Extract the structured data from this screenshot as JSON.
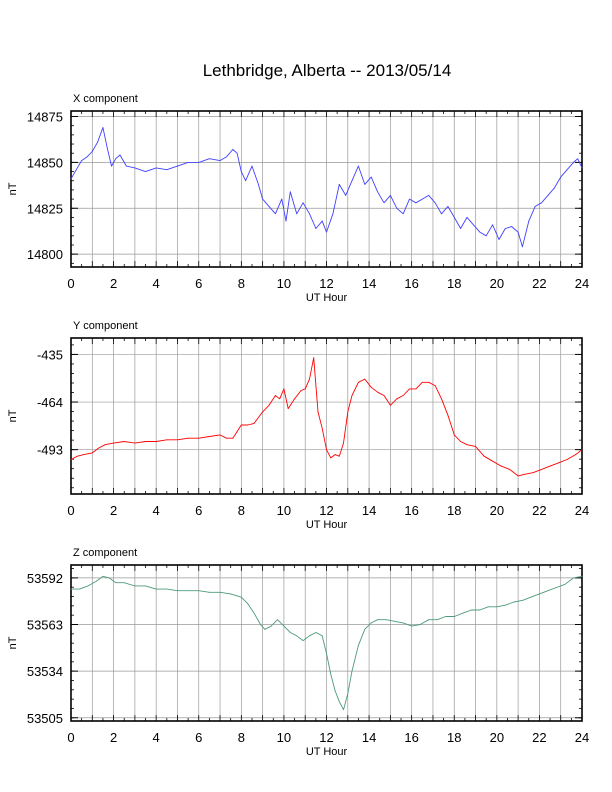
{
  "figure": {
    "title": "Lethbridge, Alberta -- 2013/05/14"
  },
  "chart_data": [
    {
      "type": "line",
      "title": "X component",
      "xlabel": "UT Hour",
      "ylabel": "nT",
      "xlim": [
        0,
        24
      ],
      "ylim": [
        14793,
        14878
      ],
      "xticks": [
        "0",
        "2",
        "4",
        "6",
        "8",
        "10",
        "12",
        "14",
        "16",
        "18",
        "20",
        "22",
        "24"
      ],
      "yticks": [
        "14800",
        "14825",
        "14850",
        "14875"
      ],
      "color": "#4040ff",
      "grid": true,
      "series": [
        {
          "x": [
            0,
            0.25,
            0.5,
            0.75,
            1.0,
            1.25,
            1.5,
            1.7,
            1.9,
            2.1,
            2.3,
            2.6,
            3.0,
            3.5,
            4.0,
            4.5,
            5.0,
            5.5,
            6.0,
            6.5,
            7.0,
            7.3,
            7.6,
            7.8,
            8.0,
            8.2,
            8.5,
            8.8,
            9.0,
            9.3,
            9.6,
            9.9,
            10.1,
            10.3,
            10.6,
            10.9,
            11.2,
            11.5,
            11.8,
            12.0,
            12.3,
            12.6,
            12.9,
            13.2,
            13.5,
            13.8,
            14.1,
            14.4,
            14.7,
            15.0,
            15.3,
            15.6,
            15.9,
            16.2,
            16.5,
            16.8,
            17.1,
            17.4,
            17.7,
            18.0,
            18.3,
            18.6,
            18.9,
            19.2,
            19.5,
            19.8,
            20.1,
            20.4,
            20.7,
            21.0,
            21.2,
            21.5,
            21.8,
            22.1,
            22.4,
            22.7,
            23.0,
            23.3,
            23.6,
            23.8,
            24.0
          ],
          "y": [
            14841,
            14846,
            14851,
            14853,
            14856,
            14861,
            14869,
            14858,
            14848,
            14852,
            14854,
            14848,
            14847,
            14845,
            14847,
            14846,
            14848,
            14850,
            14850,
            14852,
            14851,
            14853,
            14857,
            14855,
            14845,
            14840,
            14848,
            14838,
            14830,
            14826,
            14822,
            14830,
            14818,
            14834,
            14822,
            14828,
            14822,
            14814,
            14818,
            14812,
            14822,
            14838,
            14832,
            14840,
            14848,
            14838,
            14842,
            14834,
            14828,
            14832,
            14825,
            14822,
            14830,
            14828,
            14830,
            14832,
            14828,
            14822,
            14826,
            14820,
            14814,
            14820,
            14816,
            14812,
            14810,
            14816,
            14808,
            14814,
            14815,
            14812,
            14804,
            14818,
            14826,
            14828,
            14832,
            14836,
            14842,
            14846,
            14850,
            14852,
            14847
          ]
        }
      ]
    },
    {
      "type": "line",
      "title": "Y component",
      "xlabel": "UT Hour",
      "ylabel": "nT",
      "xlim": [
        0,
        24
      ],
      "ylim": [
        -520,
        -425
      ],
      "xticks": [
        "0",
        "2",
        "4",
        "6",
        "8",
        "10",
        "12",
        "14",
        "16",
        "18",
        "20",
        "22",
        "24"
      ],
      "yticks": [
        "-435",
        "-464",
        "-493"
      ],
      "color": "#ff0000",
      "grid": true,
      "series": [
        {
          "x": [
            0,
            0.3,
            0.6,
            1.0,
            1.3,
            1.6,
            2.0,
            2.5,
            3.0,
            3.5,
            4.0,
            4.5,
            5.0,
            5.5,
            6.0,
            6.5,
            7.0,
            7.3,
            7.6,
            7.8,
            8.0,
            8.3,
            8.6,
            9.0,
            9.3,
            9.6,
            9.8,
            10.0,
            10.2,
            10.5,
            10.8,
            11.0,
            11.2,
            11.4,
            11.6,
            11.8,
            12.0,
            12.2,
            12.4,
            12.6,
            12.8,
            13.0,
            13.2,
            13.5,
            13.8,
            14.1,
            14.4,
            14.7,
            15.0,
            15.3,
            15.6,
            15.9,
            16.2,
            16.5,
            16.8,
            17.1,
            17.4,
            17.7,
            18.0,
            18.3,
            18.6,
            19.0,
            19.4,
            19.8,
            20.2,
            20.6,
            21.0,
            21.3,
            21.7,
            22.1,
            22.5,
            22.9,
            23.3,
            23.7,
            24.0
          ],
          "y": [
            -499,
            -497,
            -496,
            -495,
            -492,
            -490,
            -489,
            -488,
            -489,
            -488,
            -488,
            -487,
            -487,
            -486,
            -486,
            -485,
            -484,
            -486,
            -486,
            -482,
            -478,
            -478,
            -477,
            -470,
            -466,
            -460,
            -462,
            -456,
            -468,
            -462,
            -457,
            -456,
            -450,
            -437,
            -470,
            -480,
            -493,
            -498,
            -496,
            -497,
            -489,
            -470,
            -460,
            -452,
            -450,
            -455,
            -458,
            -460,
            -466,
            -462,
            -460,
            -456,
            -456,
            -452,
            -452,
            -454,
            -462,
            -472,
            -484,
            -488,
            -490,
            -491,
            -497,
            -500,
            -503,
            -505,
            -509,
            -508,
            -507,
            -505,
            -503,
            -501,
            -499,
            -496,
            -493
          ]
        }
      ]
    },
    {
      "type": "line",
      "title": "Z component",
      "xlabel": "UT Hour",
      "ylabel": "nT",
      "xlim": [
        0,
        24
      ],
      "ylim": [
        53503,
        53600
      ],
      "xticks": [
        "0",
        "2",
        "4",
        "6",
        "8",
        "10",
        "12",
        "14",
        "16",
        "18",
        "20",
        "22",
        "24"
      ],
      "yticks": [
        "53592",
        "53563",
        "53534",
        "53505"
      ],
      "color": "#4d9a78",
      "grid": true,
      "series": [
        {
          "x": [
            0,
            0.4,
            0.8,
            1.2,
            1.5,
            1.8,
            2.1,
            2.5,
            3.0,
            3.5,
            4.0,
            4.5,
            5.0,
            5.5,
            6.0,
            6.5,
            7.0,
            7.5,
            8.0,
            8.3,
            8.6,
            8.9,
            9.1,
            9.4,
            9.7,
            10.0,
            10.3,
            10.6,
            10.9,
            11.2,
            11.5,
            11.8,
            12.0,
            12.2,
            12.4,
            12.6,
            12.8,
            13.0,
            13.2,
            13.5,
            13.8,
            14.1,
            14.4,
            14.8,
            15.2,
            15.6,
            16.0,
            16.4,
            16.8,
            17.2,
            17.6,
            18.0,
            18.4,
            18.8,
            19.2,
            19.6,
            20.0,
            20.4,
            20.8,
            21.2,
            21.6,
            22.0,
            22.4,
            22.8,
            23.2,
            23.6,
            24.0
          ],
          "y": [
            53585,
            53585,
            53587,
            53590,
            53593,
            53592,
            53589,
            53589,
            53587,
            53587,
            53585,
            53585,
            53584,
            53584,
            53584,
            53583,
            53583,
            53582,
            53580,
            53576,
            53570,
            53563,
            53560,
            53562,
            53566,
            53562,
            53558,
            53556,
            53553,
            53556,
            53558,
            53556,
            53545,
            53532,
            53522,
            53515,
            53510,
            53520,
            53534,
            53550,
            53560,
            53564,
            53566,
            53566,
            53565,
            53564,
            53562,
            53563,
            53566,
            53566,
            53568,
            53568,
            53570,
            53572,
            53572,
            53574,
            53574,
            53575,
            53577,
            53578,
            53580,
            53582,
            53584,
            53586,
            53588,
            53592,
            53593
          ]
        }
      ]
    }
  ]
}
